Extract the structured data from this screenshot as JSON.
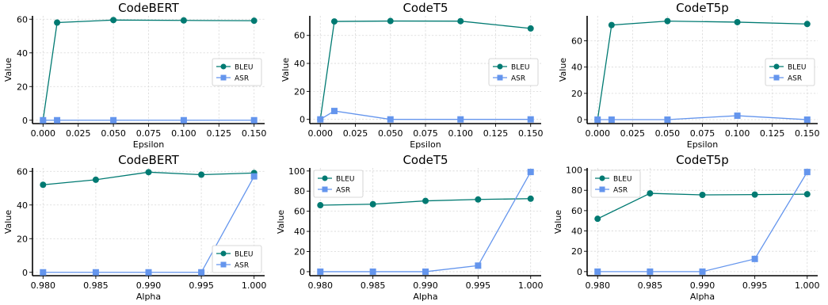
{
  "chart_data": [
    {
      "type": "line",
      "title": "CodeBERT",
      "xlabel": "Epsilon",
      "ylabel": "Value",
      "x": [
        0.0,
        0.01,
        0.05,
        0.1,
        0.15
      ],
      "xlim": [
        -0.0075,
        0.1575
      ],
      "xticks": [
        "0.000",
        "0.025",
        "0.050",
        "0.075",
        "0.100",
        "0.125",
        "0.150"
      ],
      "xtick_values": [
        0.0,
        0.025,
        0.05,
        0.075,
        0.1,
        0.125,
        0.15
      ],
      "ylim": [
        -2,
        62
      ],
      "yticks": [
        0,
        20,
        40,
        60
      ],
      "legend_position": "center-right",
      "grid": true,
      "series": [
        {
          "name": "BLEU",
          "color": "#007a72",
          "marker": "circle",
          "values": [
            0,
            58,
            59.5,
            59.3,
            59.1
          ]
        },
        {
          "name": "ASR",
          "color": "#6495ed",
          "marker": "square",
          "values": [
            0,
            0,
            0,
            0,
            0
          ]
        }
      ]
    },
    {
      "type": "line",
      "title": "CodeT5",
      "xlabel": "Epsilon",
      "ylabel": "Value",
      "x": [
        0.0,
        0.01,
        0.05,
        0.1,
        0.15
      ],
      "xlim": [
        -0.0075,
        0.1575
      ],
      "xticks": [
        "0.000",
        "0.025",
        "0.050",
        "0.075",
        "0.100",
        "0.125",
        "0.150"
      ],
      "xtick_values": [
        0.0,
        0.025,
        0.05,
        0.075,
        0.1,
        0.125,
        0.15
      ],
      "ylim": [
        -3,
        74
      ],
      "yticks": [
        0,
        20,
        40,
        60
      ],
      "legend_position": "center-right",
      "grid": true,
      "series": [
        {
          "name": "BLEU",
          "color": "#007a72",
          "marker": "circle",
          "values": [
            0,
            70,
            70.3,
            70.2,
            65
          ]
        },
        {
          "name": "ASR",
          "color": "#6495ed",
          "marker": "square",
          "values": [
            0,
            6,
            0,
            0,
            0
          ]
        }
      ]
    },
    {
      "type": "line",
      "title": "CodeT5p",
      "xlabel": "Epsilon",
      "ylabel": "Value",
      "x": [
        0.0,
        0.01,
        0.05,
        0.1,
        0.15
      ],
      "xlim": [
        -0.0075,
        0.1575
      ],
      "xticks": [
        "0.000",
        "0.025",
        "0.050",
        "0.075",
        "0.100",
        "0.125",
        "0.150"
      ],
      "xtick_values": [
        0.0,
        0.025,
        0.05,
        0.075,
        0.1,
        0.125,
        0.15
      ],
      "ylim": [
        -3,
        79
      ],
      "yticks": [
        0,
        20,
        40,
        60
      ],
      "legend_position": "center-right",
      "grid": true,
      "series": [
        {
          "name": "BLEU",
          "color": "#007a72",
          "marker": "circle",
          "values": [
            0,
            72,
            75,
            74.2,
            72.8
          ]
        },
        {
          "name": "ASR",
          "color": "#6495ed",
          "marker": "square",
          "values": [
            0,
            0,
            0,
            3,
            0
          ]
        }
      ]
    },
    {
      "type": "line",
      "title": "CodeBERT",
      "xlabel": "Alpha",
      "ylabel": "Value",
      "x": [
        0.98,
        0.985,
        0.99,
        0.995,
        1.0
      ],
      "xlim": [
        0.979,
        1.001
      ],
      "xticks": [
        "0.980",
        "0.985",
        "0.990",
        "0.995",
        "1.000"
      ],
      "xtick_values": [
        0.98,
        0.985,
        0.99,
        0.995,
        1.0
      ],
      "ylim": [
        -2,
        62
      ],
      "yticks": [
        0,
        20,
        40,
        60
      ],
      "legend_position": "lower-right",
      "grid": true,
      "series": [
        {
          "name": "BLEU",
          "color": "#007a72",
          "marker": "circle",
          "values": [
            52,
            55,
            59.5,
            58,
            59
          ]
        },
        {
          "name": "ASR",
          "color": "#6495ed",
          "marker": "square",
          "values": [
            0,
            0,
            0,
            0,
            57
          ]
        }
      ]
    },
    {
      "type": "line",
      "title": "CodeT5",
      "xlabel": "Alpha",
      "ylabel": "Value",
      "x": [
        0.98,
        0.985,
        0.99,
        0.995,
        1.0
      ],
      "xlim": [
        0.979,
        1.001
      ],
      "xticks": [
        "0.980",
        "0.985",
        "0.990",
        "0.995",
        "1.000"
      ],
      "xtick_values": [
        0.98,
        0.985,
        0.99,
        0.995,
        1.0
      ],
      "ylim": [
        -4,
        103
      ],
      "yticks": [
        0,
        20,
        40,
        60,
        80,
        100
      ],
      "legend_position": "upper-left",
      "grid": true,
      "series": [
        {
          "name": "BLEU",
          "color": "#007a72",
          "marker": "circle",
          "values": [
            66,
            67,
            70.3,
            71.7,
            72.5
          ]
        },
        {
          "name": "ASR",
          "color": "#6495ed",
          "marker": "square",
          "values": [
            0,
            0,
            0,
            6,
            99
          ]
        }
      ]
    },
    {
      "type": "line",
      "title": "CodeT5p",
      "xlabel": "Alpha",
      "ylabel": "Value",
      "x": [
        0.98,
        0.985,
        0.99,
        0.995,
        1.0
      ],
      "xlim": [
        0.979,
        1.001
      ],
      "xticks": [
        "0.980",
        "0.985",
        "0.990",
        "0.995",
        "1.000"
      ],
      "xtick_values": [
        0.98,
        0.985,
        0.99,
        0.995,
        1.0
      ],
      "ylim": [
        -4,
        102
      ],
      "yticks": [
        0,
        20,
        40,
        60,
        80,
        100
      ],
      "legend_position": "upper-left",
      "grid": true,
      "series": [
        {
          "name": "BLEU",
          "color": "#007a72",
          "marker": "circle",
          "values": [
            52,
            77,
            75.5,
            75.8,
            76.2
          ]
        },
        {
          "name": "ASR",
          "color": "#6495ed",
          "marker": "square",
          "values": [
            0,
            0,
            0,
            12.5,
            98
          ]
        }
      ]
    }
  ]
}
